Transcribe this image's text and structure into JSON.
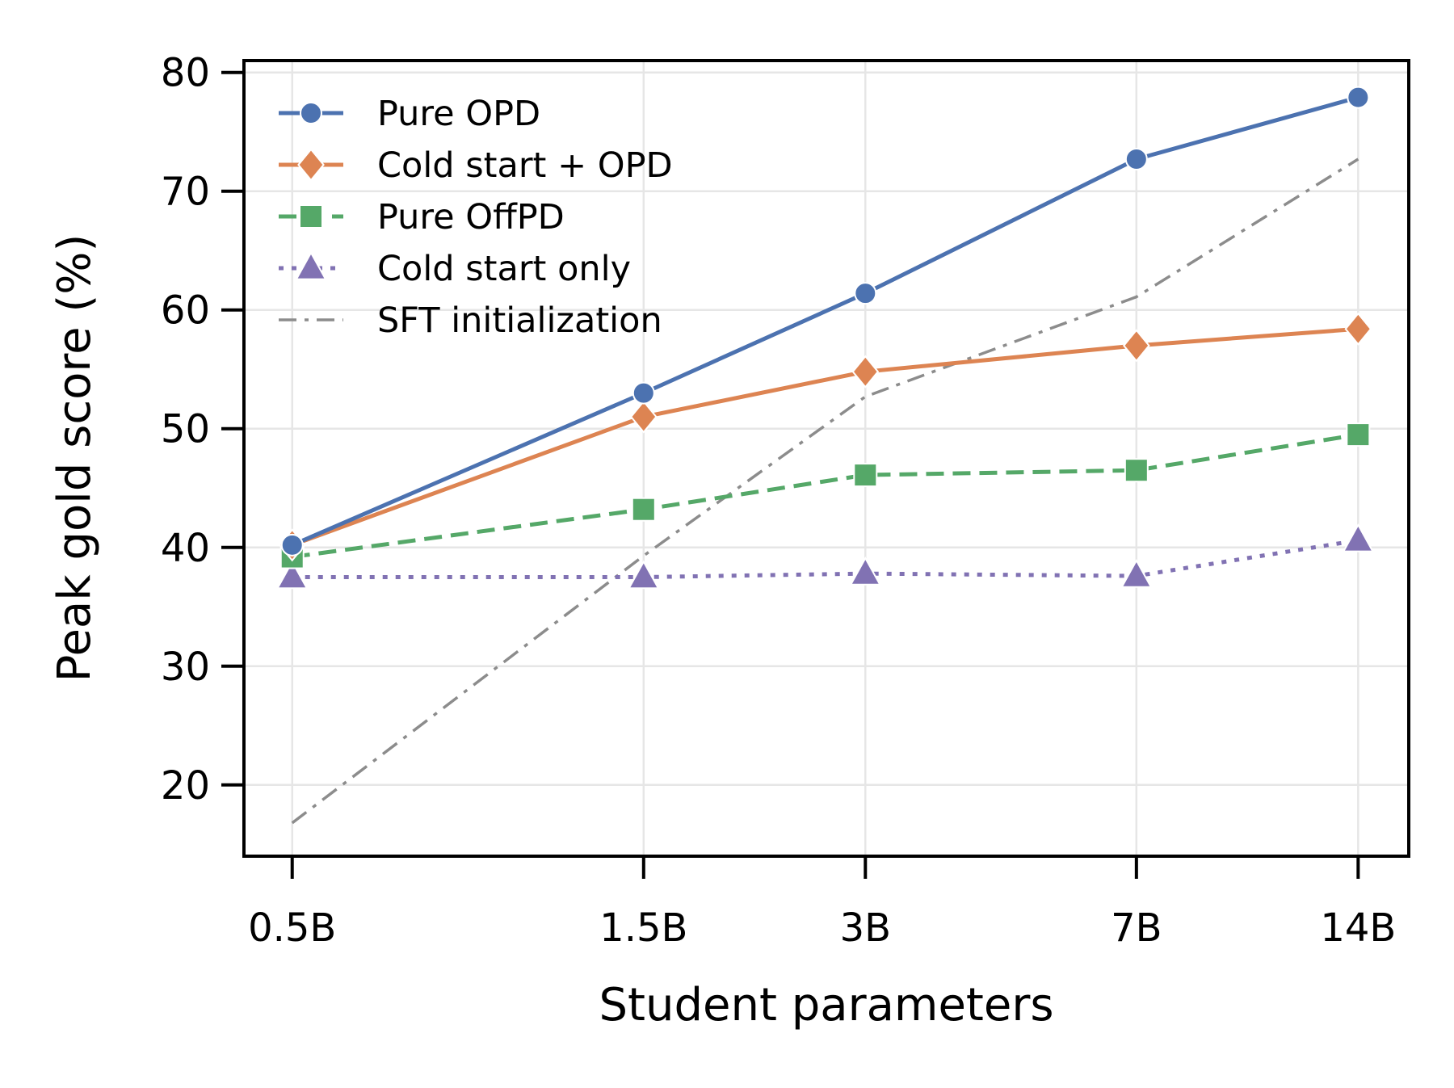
{
  "chart_data": {
    "type": "line",
    "title": "",
    "xlabel": "Student parameters",
    "ylabel": "Peak gold score (%)",
    "x_scale": "log",
    "x": [
      0.5,
      1.5,
      3,
      7,
      14
    ],
    "x_tick_labels": [
      "0.5B",
      "1.5B",
      "3B",
      "7B",
      "14B"
    ],
    "y_ticks": [
      20,
      30,
      40,
      50,
      60,
      70,
      80
    ],
    "xlim": [
      0.43,
      16.4
    ],
    "ylim": [
      14,
      81
    ],
    "grid": true,
    "legend_position": "upper-left",
    "series": [
      {
        "name": "Pure OPD",
        "values": [
          40.2,
          53.0,
          61.4,
          72.7,
          77.9
        ],
        "color": "#4c72b0",
        "marker": "circle",
        "linestyle": "solid"
      },
      {
        "name": "Cold start + OPD",
        "values": [
          40.2,
          51.0,
          54.8,
          57.0,
          58.4
        ],
        "color": "#dd8452",
        "marker": "diamond",
        "linestyle": "solid"
      },
      {
        "name": "Pure OffPD",
        "values": [
          39.2,
          43.2,
          46.1,
          46.5,
          49.5
        ],
        "color": "#55a868",
        "marker": "square",
        "linestyle": "dashed"
      },
      {
        "name": "Cold start only",
        "values": [
          37.5,
          37.5,
          37.8,
          37.6,
          40.6
        ],
        "color": "#8172b3",
        "marker": "triangle",
        "linestyle": "dotted"
      },
      {
        "name": "SFT initialization",
        "values": [
          16.8,
          39.3,
          52.7,
          61.1,
          72.7
        ],
        "color": "#8c8c8c",
        "marker": "none",
        "linestyle": "dashdot"
      }
    ]
  }
}
